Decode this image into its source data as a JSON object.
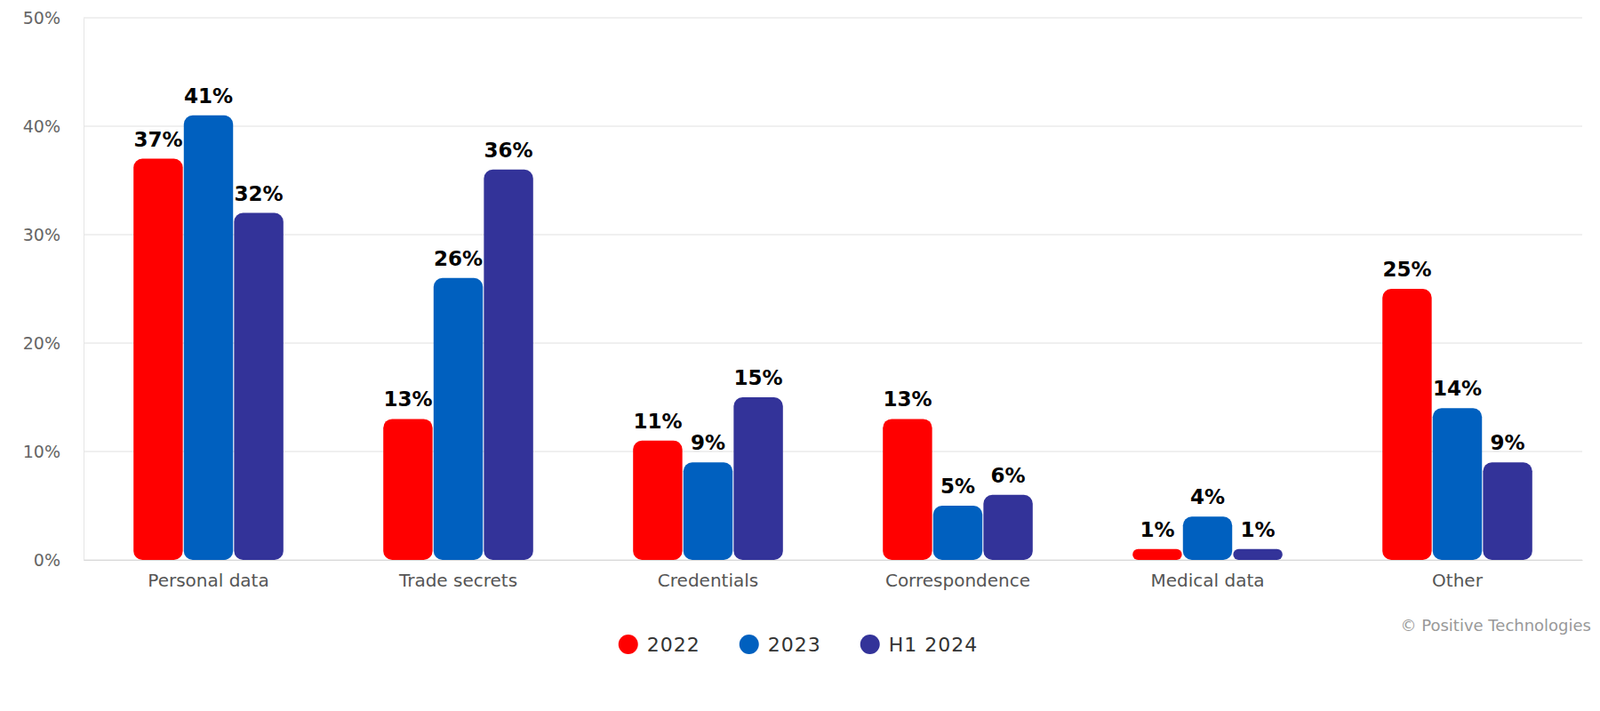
{
  "chart_data": {
    "type": "bar",
    "categories": [
      "Personal data",
      "Trade secrets",
      "Credentials",
      "Correspondence",
      "Medical data",
      "Other"
    ],
    "series": [
      {
        "name": "2022",
        "color": "#ff0000",
        "values": [
          37,
          13,
          11,
          13,
          1,
          25
        ],
        "value_labels": [
          "37%",
          "13%",
          "11%",
          "13%",
          "1%",
          "25%"
        ]
      },
      {
        "name": "2023",
        "color": "#0060bf",
        "values": [
          41,
          26,
          9,
          5,
          4,
          14
        ],
        "value_labels": [
          "41%",
          "26%",
          "9%",
          "5%",
          "4%",
          "14%"
        ]
      },
      {
        "name": "H1 2024",
        "color": "#333399",
        "values": [
          32,
          36,
          15,
          6,
          1,
          9
        ],
        "value_labels": [
          "32%",
          "36%",
          "15%",
          "6%",
          "1%",
          "9%"
        ]
      }
    ],
    "ylim": [
      0,
      50
    ],
    "yticks": [
      {
        "value": 0,
        "label": "0%"
      },
      {
        "value": 10,
        "label": "10%"
      },
      {
        "value": 20,
        "label": "20%"
      },
      {
        "value": 30,
        "label": "30%"
      },
      {
        "value": 40,
        "label": "40%"
      },
      {
        "value": 50,
        "label": "50%"
      }
    ],
    "grid": true,
    "data_labels": true,
    "legend": "bottom",
    "annotations": [
      "© Positive Technologies"
    ]
  }
}
